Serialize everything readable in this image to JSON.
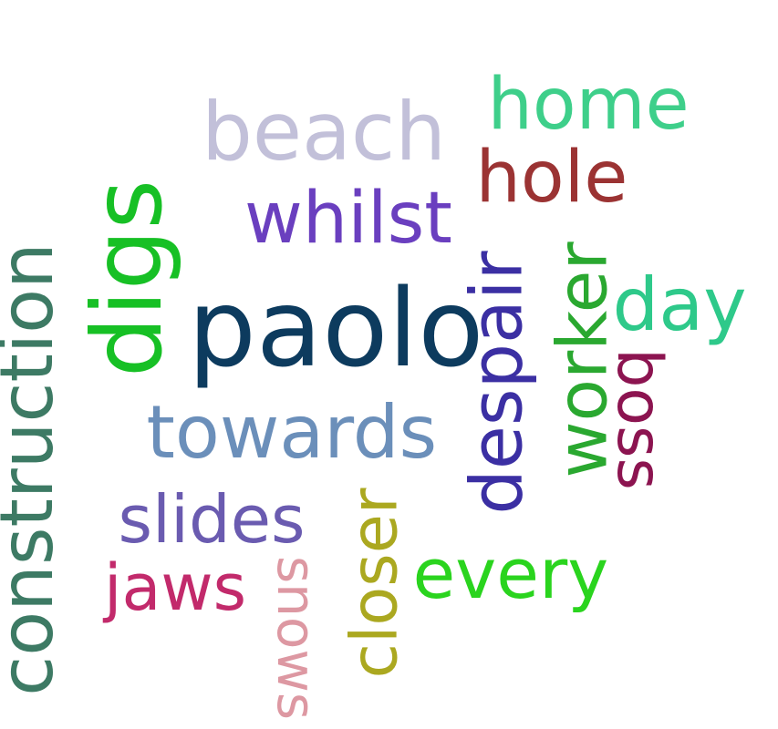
{
  "words": [
    {
      "key": "paolo",
      "text": "paolo",
      "color": "#0d3b5e"
    },
    {
      "key": "digs",
      "text": "digs",
      "color": "#17c025"
    },
    {
      "key": "construction",
      "text": "construction",
      "color": "#3d7a64"
    },
    {
      "key": "beach",
      "text": "beach",
      "color": "#c2c0d9"
    },
    {
      "key": "home",
      "text": "home",
      "color": "#3ecf8a"
    },
    {
      "key": "hole",
      "text": "hole",
      "color": "#9b3333"
    },
    {
      "key": "whilst",
      "text": "whilst",
      "color": "#6a3fbf"
    },
    {
      "key": "despair",
      "text": "despair",
      "color": "#3b2fa3"
    },
    {
      "key": "worker",
      "text": "worker",
      "color": "#2aa830"
    },
    {
      "key": "day",
      "text": "day",
      "color": "#2ec98a"
    },
    {
      "key": "boss",
      "text": "boss",
      "color": "#8c1450"
    },
    {
      "key": "towards",
      "text": "towards",
      "color": "#6b8fba"
    },
    {
      "key": "slides",
      "text": "slides",
      "color": "#6a5bb0"
    },
    {
      "key": "jaws",
      "text": "jaws",
      "color": "#c22a6b"
    },
    {
      "key": "snows",
      "text": "snows",
      "color": "#dd98a2"
    },
    {
      "key": "closer",
      "text": "closer",
      "color": "#aba820"
    },
    {
      "key": "every",
      "text": "every",
      "color": "#2ad41e"
    }
  ]
}
